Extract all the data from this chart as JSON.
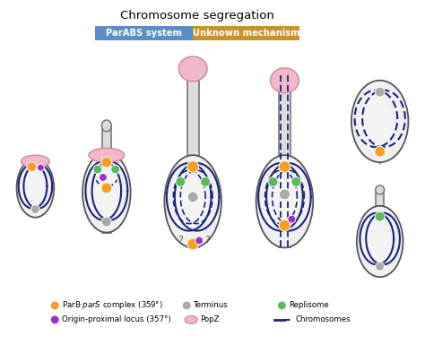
{
  "title": "Chromosome segregation",
  "parabs_label": "ParABS system",
  "unknown_label": "Unknown mechanism",
  "parabs_color": "#5b8ec9",
  "unknown_color": "#c8942a",
  "bg_color": "#ffffff",
  "cell_fill": "#f0f0f0",
  "cell_fill2": "#e8e8e8",
  "cell_edge": "#555555",
  "chromosome_color": "#1a237e",
  "orange_dot": "#f5a020",
  "purple_dot": "#9b30c8",
  "gray_dot": "#aaaaaa",
  "green_dot": "#5cb85c",
  "popz_color": "#f0b8c8",
  "popz_edge": "#cc8899",
  "tail_color": "#aaaaaa",
  "stalk_fill": "#dcdcdc",
  "stalk_edge": "#777777"
}
